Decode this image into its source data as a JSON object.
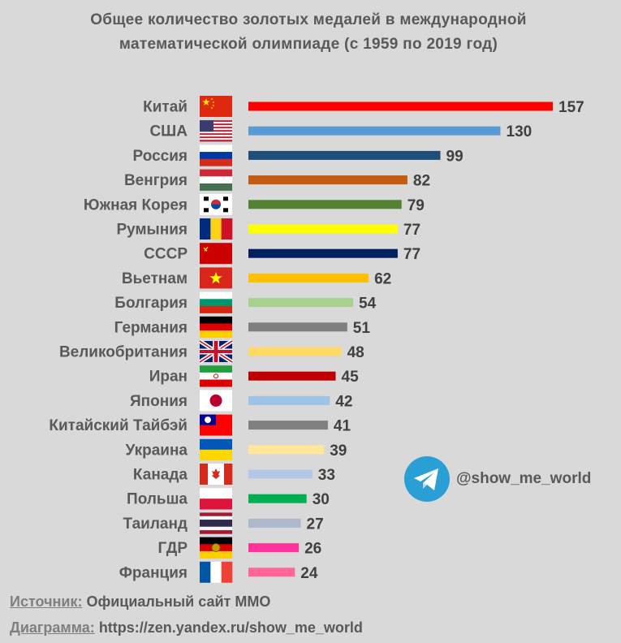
{
  "title": "Общее количество золотых медалей в международной математической олимпиаде (с 1959 по 2019 год)",
  "chart_data": {
    "type": "bar",
    "orientation": "horizontal",
    "title": "Общее количество золотых медалей в международной математической олимпиаде (с 1959 по 2019 год)",
    "categories": [
      "Китай",
      "США",
      "Россия",
      "Венгрия",
      "Южная Корея",
      "Румыния",
      "СССР",
      "Вьетнам",
      "Болгария",
      "Германия",
      "Великобритания",
      "Иран",
      "Япония",
      "Китайский Тайбэй",
      "Украина",
      "Канада",
      "Польша",
      "Таиланд",
      "ГДР",
      "Франция"
    ],
    "values": [
      157,
      130,
      99,
      82,
      79,
      77,
      77,
      62,
      54,
      51,
      48,
      45,
      42,
      41,
      39,
      33,
      30,
      27,
      26,
      24
    ],
    "colors": [
      "#ff0000",
      "#5b9bd5",
      "#1f4e79",
      "#c55a11",
      "#548235",
      "#ffff00",
      "#002060",
      "#ffc000",
      "#a9d18e",
      "#7f7f7f",
      "#ffd966",
      "#c00000",
      "#9dc3e6",
      "#808080",
      "#ffe699",
      "#b4c7e7",
      "#00b050",
      "#adb9ca",
      "#ff3399",
      "#ff6699"
    ],
    "flags": [
      "china",
      "usa",
      "russia",
      "hungary",
      "south-korea",
      "romania",
      "ussr",
      "vietnam",
      "bulgaria",
      "germany",
      "uk",
      "iran",
      "japan",
      "taiwan",
      "ukraine",
      "canada",
      "poland",
      "thailand",
      "gdr",
      "france"
    ],
    "xlim": [
      0,
      157
    ],
    "grid": false,
    "legend": "none"
  },
  "telegram": {
    "handle": "@show_me_world",
    "icon": "telegram-icon"
  },
  "footer": {
    "source_key": "Источник:",
    "source_value": " Официальный сайт ММО",
    "chart_key": "Диаграмма:",
    "chart_value": " https://zen.yandex.ru/show_me_world"
  }
}
